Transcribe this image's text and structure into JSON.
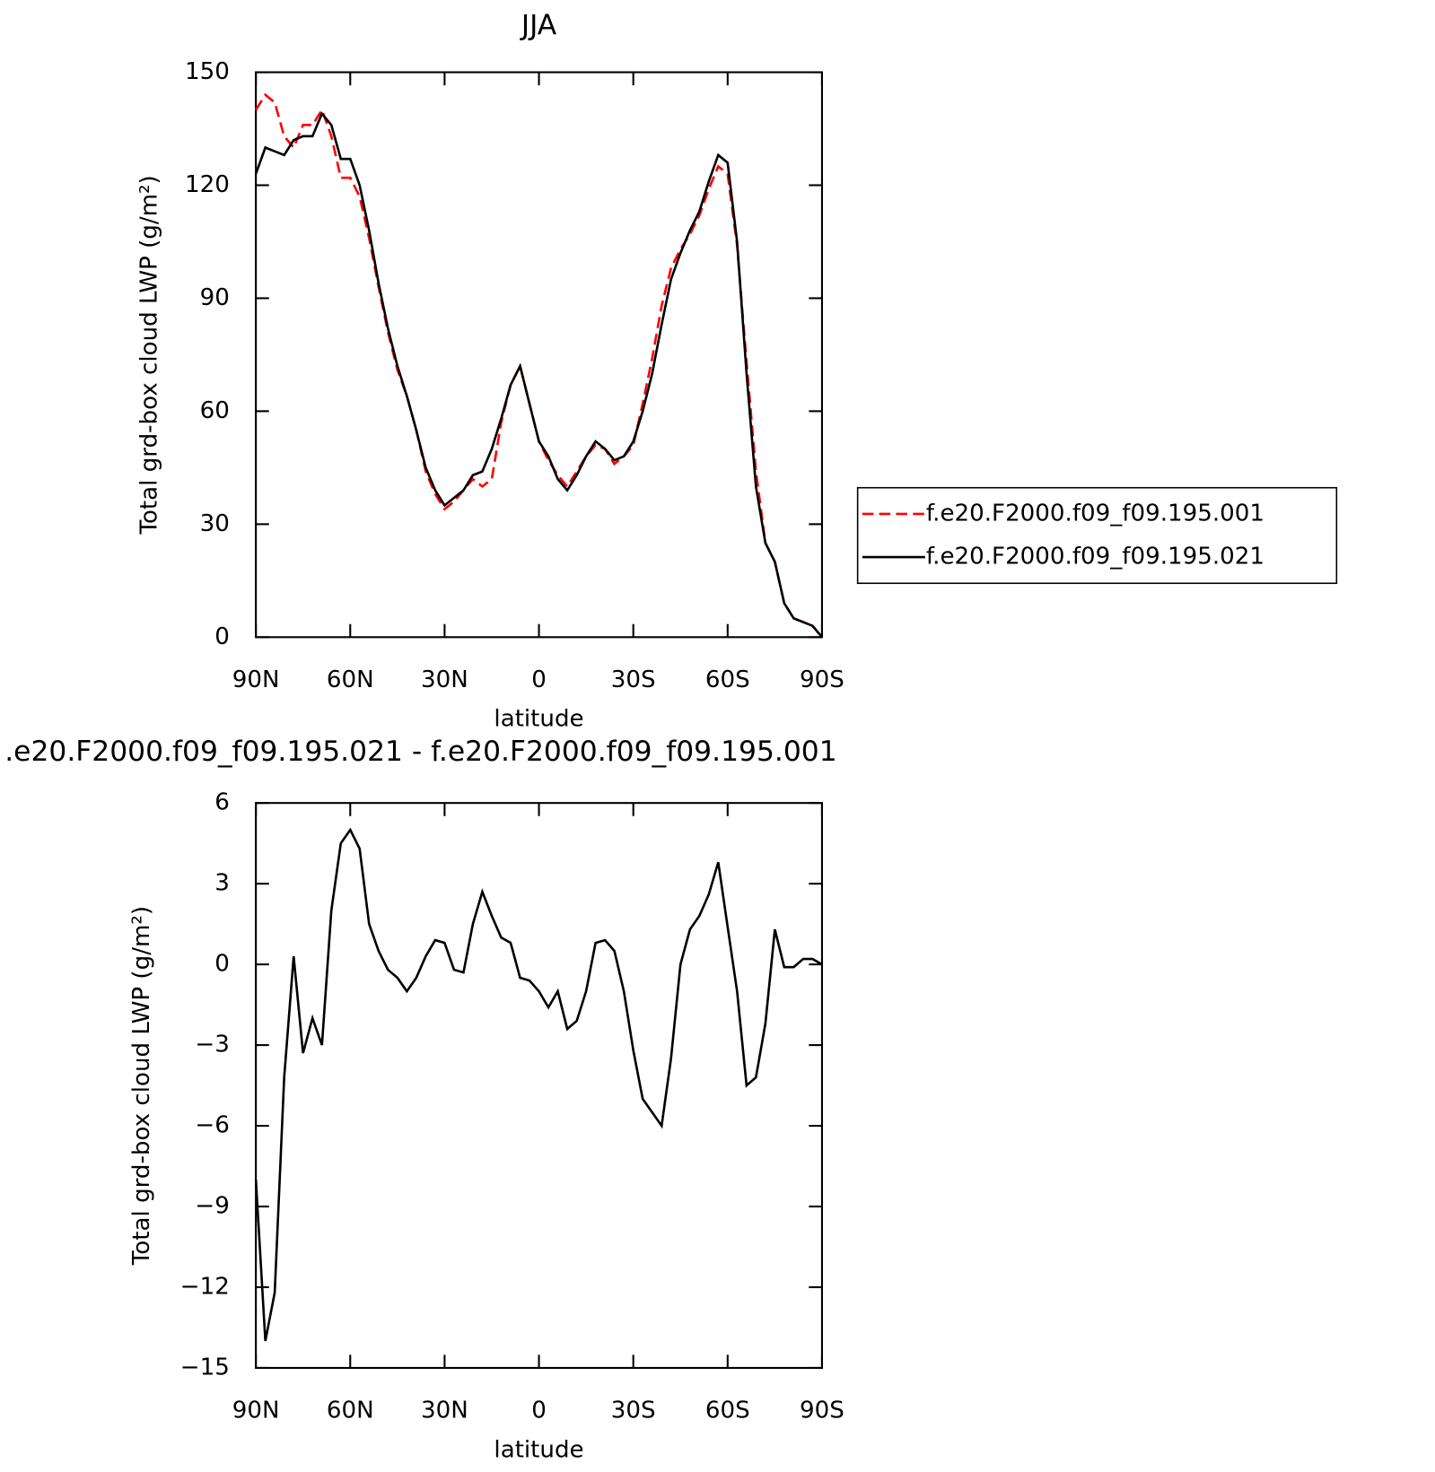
{
  "chart_data": [
    {
      "type": "line",
      "title": "JJA",
      "xlabel": "latitude",
      "ylabel": "Total grd-box cloud LWP (g/m²)",
      "x": [
        90,
        87,
        84,
        81,
        78,
        75,
        72,
        69,
        66,
        63,
        60,
        57,
        54,
        51,
        48,
        45,
        42,
        39,
        36,
        33,
        30,
        27,
        24,
        21,
        18,
        15,
        12,
        9,
        6,
        3,
        0,
        -3,
        -6,
        -9,
        -12,
        -15,
        -18,
        -21,
        -24,
        -27,
        -30,
        -33,
        -36,
        -39,
        -42,
        -45,
        -48,
        -51,
        -54,
        -57,
        -60,
        -63,
        -66,
        -69,
        -72,
        -75,
        -78,
        -81,
        -84,
        -87,
        -90
      ],
      "xlim": [
        90,
        -90
      ],
      "xticks": [
        {
          "value": 90,
          "label": "90N"
        },
        {
          "value": 60,
          "label": "60N"
        },
        {
          "value": 30,
          "label": "30N"
        },
        0,
        {
          "value": -30,
          "label": "30S"
        },
        {
          "value": -60,
          "label": "60S"
        },
        {
          "value": -90,
          "label": "90S"
        }
      ],
      "ylim": [
        0,
        150
      ],
      "yticks": [
        0,
        30,
        60,
        90,
        120,
        150
      ],
      "legend": "right",
      "series": [
        {
          "name": "f.e20.F2000.f09_f09.195.001",
          "color": "#ff0000",
          "dash": "dashed",
          "values": [
            140,
            144,
            142,
            133,
            130,
            136,
            136,
            140,
            133,
            122,
            122,
            117,
            106,
            93,
            81,
            71,
            64,
            55,
            44,
            38,
            34,
            36,
            39,
            42,
            40,
            42,
            57,
            67,
            72,
            62,
            52,
            47,
            43,
            40,
            44,
            48,
            51,
            50,
            46,
            48,
            51,
            62,
            74,
            88,
            98,
            103,
            107,
            112,
            119,
            125,
            123,
            104,
            73,
            44,
            25,
            20,
            9,
            5,
            4,
            3,
            0
          ]
        },
        {
          "name": "f.e20.F2000.f09_f09.195.021",
          "color": "#000000",
          "values": [
            123,
            130,
            129,
            128,
            132,
            133,
            133,
            139,
            136,
            127,
            127,
            120,
            108,
            94,
            82,
            72,
            64,
            55,
            45,
            39,
            35,
            37,
            39,
            43,
            44,
            50,
            58,
            67,
            72,
            62,
            52,
            48,
            42,
            39,
            43,
            48,
            52,
            50,
            47,
            48,
            52,
            60,
            70,
            83,
            95,
            102,
            108,
            113,
            121,
            128,
            126,
            105,
            70,
            40,
            25,
            20,
            9,
            5,
            4,
            3,
            0
          ]
        }
      ]
    },
    {
      "type": "line",
      "title": ".e20.F2000.f09_f09.195.021 - f.e20.F2000.f09_f09.195.001",
      "xlabel": "latitude",
      "ylabel": "Total grd-box cloud LWP (g/m²)",
      "x": [
        90,
        87,
        84,
        81,
        78,
        75,
        72,
        69,
        66,
        63,
        60,
        57,
        54,
        51,
        48,
        45,
        42,
        39,
        36,
        33,
        30,
        27,
        24,
        21,
        18,
        15,
        12,
        9,
        6,
        3,
        0,
        -3,
        -6,
        -9,
        -12,
        -15,
        -18,
        -21,
        -24,
        -27,
        -30,
        -33,
        -36,
        -39,
        -42,
        -45,
        -48,
        -51,
        -54,
        -57,
        -60,
        -63,
        -66,
        -69,
        -72,
        -75,
        -78,
        -81,
        -84,
        -87,
        -90
      ],
      "xlim": [
        90,
        -90
      ],
      "xticks": [
        {
          "value": 90,
          "label": "90N"
        },
        {
          "value": 60,
          "label": "60N"
        },
        {
          "value": 30,
          "label": "30N"
        },
        0,
        {
          "value": -30,
          "label": "30S"
        },
        {
          "value": -60,
          "label": "60S"
        },
        {
          "value": -90,
          "label": "90S"
        }
      ],
      "ylim": [
        -15,
        6
      ],
      "yticks": [
        {
          "value": -15,
          "label": "−15"
        },
        {
          "value": -12,
          "label": "−12"
        },
        {
          "value": -9,
          "label": "−9"
        },
        {
          "value": -6,
          "label": "−6"
        },
        {
          "value": -3,
          "label": "−3"
        },
        0,
        3,
        6
      ],
      "series": [
        {
          "color": "#000000",
          "values": [
            -8,
            -14,
            -12.2,
            -4.2,
            0.3,
            -3.3,
            -2,
            -3,
            2,
            4.5,
            5,
            4.3,
            1.5,
            0.5,
            -0.2,
            -0.5,
            -1,
            -0.5,
            0.3,
            0.9,
            0.8,
            -0.2,
            -0.3,
            1.5,
            2.7,
            1.8,
            1,
            0.8,
            -0.5,
            -0.6,
            -1,
            -1.6,
            -1,
            -2.4,
            -2.1,
            -1,
            0.8,
            0.9,
            0.5,
            -1,
            -3.2,
            -5,
            -5.5,
            -6,
            -3.5,
            0,
            1.3,
            1.8,
            2.6,
            3.8,
            1.4,
            -1,
            -4.5,
            -4.2,
            -2.2,
            1.3,
            -0.1,
            -0.1,
            0.2,
            0.2,
            0
          ]
        }
      ]
    }
  ]
}
